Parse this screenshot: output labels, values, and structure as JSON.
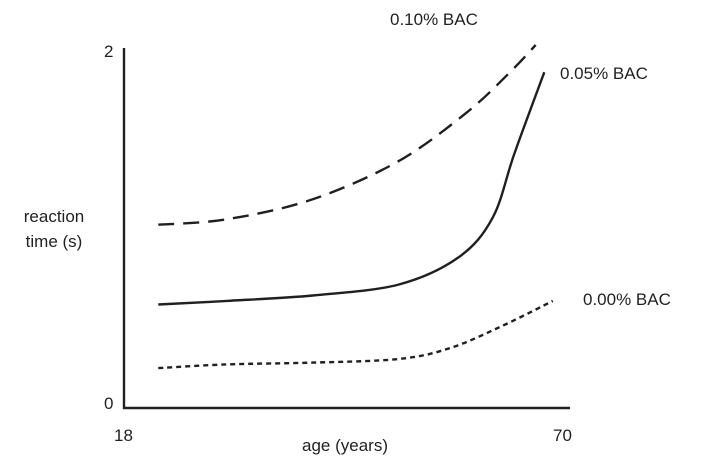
{
  "chart_data": {
    "type": "line",
    "title": "",
    "xlabel": "age (years)",
    "ylabel": [
      "reaction",
      "time (s)"
    ],
    "xlim": [
      18,
      70
    ],
    "ylim": [
      0,
      2
    ],
    "x_ticks": [
      "18",
      "70"
    ],
    "y_ticks": [
      "0",
      "2"
    ],
    "grid": false,
    "legend": "none (series labeled at line ends)",
    "series": [
      {
        "name": "0.10% BAC",
        "style": "dashed",
        "x": [
          22,
          30,
          40,
          50,
          58,
          63,
          66
        ],
        "y": [
          1.01,
          1.04,
          1.15,
          1.36,
          1.63,
          1.85,
          2.0
        ]
      },
      {
        "name": "0.05% BAC",
        "style": "solid",
        "x": [
          22,
          30,
          40,
          50,
          57,
          61,
          63.5,
          67
        ],
        "y": [
          0.57,
          0.59,
          0.62,
          0.68,
          0.83,
          1.05,
          1.4,
          1.85
        ]
      },
      {
        "name": "0.00% BAC",
        "style": "dotted",
        "x": [
          22,
          30,
          40,
          50,
          56,
          62,
          68
        ],
        "y": [
          0.22,
          0.24,
          0.25,
          0.27,
          0.33,
          0.45,
          0.59
        ]
      }
    ]
  }
}
